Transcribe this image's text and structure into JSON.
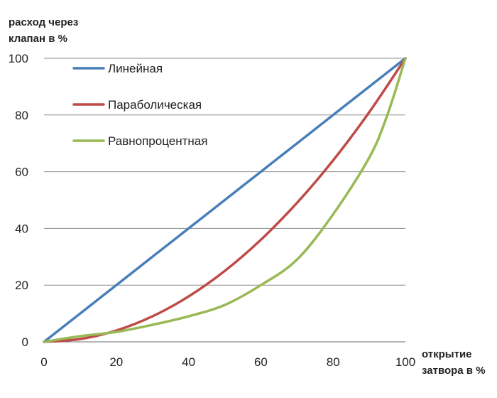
{
  "chart_data": {
    "type": "line",
    "ylabel_lines": [
      "расход через",
      "клапан в %"
    ],
    "xlabel_lines": [
      "открытие",
      "затвора в %"
    ],
    "xlim": [
      0,
      100
    ],
    "ylim": [
      0,
      100
    ],
    "x_ticks": [
      0,
      20,
      40,
      60,
      80,
      100
    ],
    "y_ticks": [
      0,
      20,
      40,
      60,
      80,
      100
    ],
    "grid": "horizontal",
    "legend_position": "top-left",
    "series": [
      {
        "name": "Линейная",
        "color": "#4a7ebb",
        "x": [
          0,
          10,
          20,
          30,
          40,
          50,
          60,
          70,
          80,
          90,
          100
        ],
        "y": [
          0,
          10,
          20,
          30,
          40,
          50,
          60,
          70,
          80,
          90,
          100
        ]
      },
      {
        "name": "Параболическая",
        "color": "#be4b48",
        "x": [
          0,
          10,
          20,
          30,
          40,
          50,
          60,
          70,
          80,
          90,
          100
        ],
        "y": [
          0,
          1,
          4,
          9,
          16,
          25,
          36,
          49,
          64,
          81,
          100
        ]
      },
      {
        "name": "Равнопроцентная",
        "color": "#98b954",
        "x": [
          0,
          10,
          20,
          30,
          40,
          50,
          60,
          70,
          80,
          90,
          95,
          100
        ],
        "y": [
          0,
          2,
          3.5,
          6,
          9,
          13,
          20,
          29,
          45,
          65,
          80,
          100
        ]
      }
    ]
  }
}
